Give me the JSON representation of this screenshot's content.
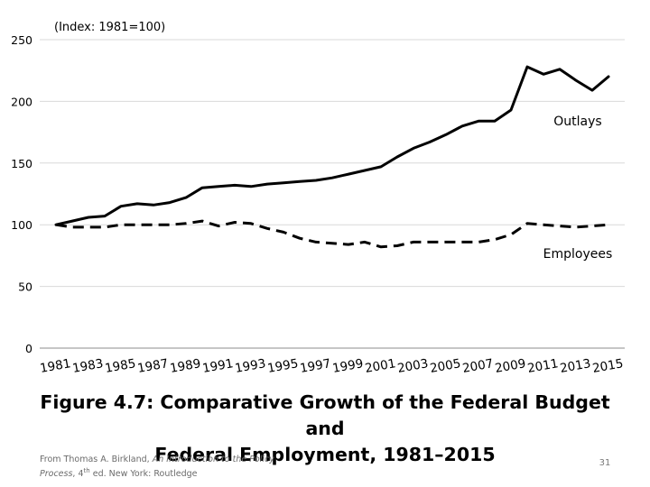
{
  "chart_data": {
    "type": "line",
    "subtitle": "(Index: 1981=100)",
    "xlabel": "",
    "ylabel": "",
    "ylim": [
      0,
      250
    ],
    "yticks": [
      0,
      50,
      100,
      150,
      200,
      250
    ],
    "x": [
      1981,
      1982,
      1983,
      1984,
      1985,
      1986,
      1987,
      1988,
      1989,
      1990,
      1991,
      1992,
      1993,
      1994,
      1995,
      1996,
      1997,
      1998,
      1999,
      2000,
      2001,
      2002,
      2003,
      2004,
      2005,
      2006,
      2007,
      2008,
      2009,
      2010,
      2011,
      2012,
      2013,
      2014,
      2015
    ],
    "xtick_labels": [
      "1981",
      "1983",
      "1985",
      "1987",
      "1989",
      "1991",
      "1993",
      "1995",
      "1997",
      "1999",
      "2001",
      "2003",
      "2005",
      "2007",
      "2009",
      "2011",
      "2013",
      "2015"
    ],
    "grid": true,
    "series": [
      {
        "name": "Outlays",
        "style": "solid",
        "values": [
          100,
          103,
          106,
          107,
          115,
          117,
          116,
          118,
          122,
          130,
          131,
          132,
          131,
          133,
          134,
          135,
          136,
          138,
          141,
          144,
          147,
          155,
          162,
          167,
          173,
          180,
          184,
          184,
          193,
          228,
          222,
          226,
          217,
          209,
          220
        ]
      },
      {
        "name": "Employees",
        "style": "dashed",
        "values": [
          100,
          98,
          98,
          98,
          100,
          100,
          100,
          100,
          101,
          103,
          99,
          102,
          101,
          97,
          94,
          89,
          86,
          85,
          84,
          86,
          82,
          83,
          86,
          86,
          86,
          86,
          86,
          88,
          92,
          101,
          100,
          99,
          98,
          99,
          100
        ]
      }
    ]
  },
  "caption": {
    "line1": "Figure 4.7: Comparative Growth of the Federal Budget and",
    "line2": "Federal Employment, 1981–2015"
  },
  "source": {
    "prefix": "From Thomas A. Birkland, ",
    "title_italic_1": "An Introduction to the Policy",
    "title_italic_2": "Process",
    "edition_num": ", 4",
    "edition_sup": "th",
    "suffix": " ed. New York: Routledge"
  },
  "slide_number": "31",
  "colors": {
    "line": "#000000",
    "grid": "#d9d9d9",
    "axis": "#8c8c8c"
  }
}
